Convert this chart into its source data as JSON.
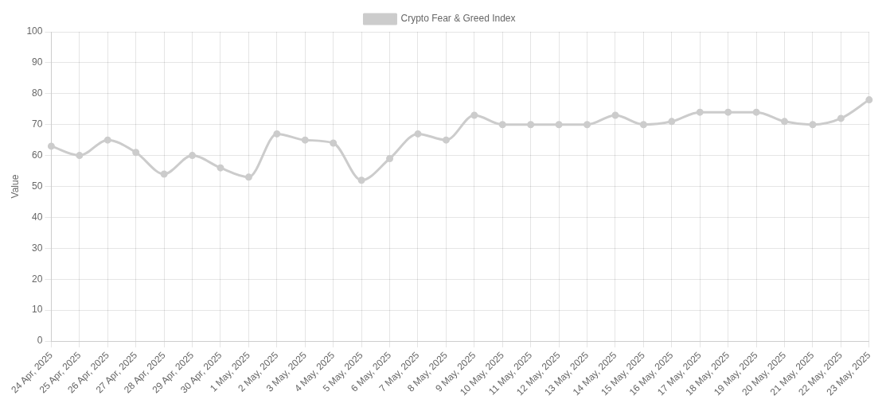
{
  "chart_data": {
    "type": "line",
    "ylabel": "Value",
    "legend": "top",
    "grid": true,
    "marker": "circle",
    "line_style": "solid",
    "categories": [
      "24 Apr, 2025",
      "25 Apr, 2025",
      "26 Apr, 2025",
      "27 Apr, 2025",
      "28 Apr, 2025",
      "29 Apr, 2025",
      "30 Apr, 2025",
      "1 May, 2025",
      "2 May, 2025",
      "3 May, 2025",
      "4 May, 2025",
      "5 May, 2025",
      "6 May, 2025",
      "7 May, 2025",
      "8 May, 2025",
      "9 May, 2025",
      "10 May, 2025",
      "11 May, 2025",
      "12 May, 2025",
      "13 May, 2025",
      "14 May, 2025",
      "15 May, 2025",
      "16 May, 2025",
      "17 May, 2025",
      "18 May, 2025",
      "19 May, 2025",
      "20 May, 2025",
      "21 May, 2025",
      "22 May, 2025",
      "23 May, 2025"
    ],
    "ylim": [
      0,
      100
    ],
    "yticks": [
      0,
      10,
      20,
      30,
      40,
      50,
      60,
      70,
      80,
      90,
      100
    ],
    "series": [
      {
        "name": "Crypto Fear & Greed Index",
        "color": "#cccccc",
        "values": [
          63,
          60,
          65,
          61,
          54,
          60,
          56,
          53,
          67,
          65,
          64,
          52,
          59,
          67,
          65,
          73,
          70,
          70,
          70,
          70,
          73,
          70,
          71,
          74,
          74,
          74,
          71,
          70,
          72,
          78
        ]
      }
    ]
  }
}
